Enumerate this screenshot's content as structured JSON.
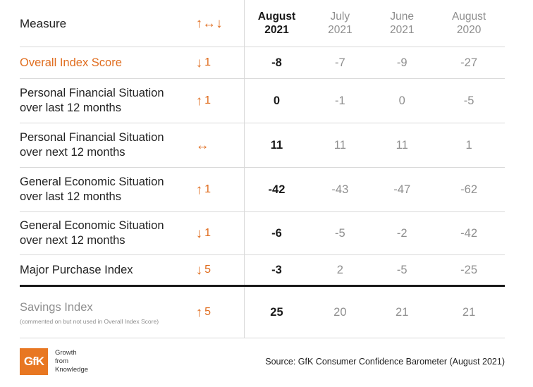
{
  "chart_data": {
    "type": "table",
    "header": {
      "measure": "Measure",
      "change_icon": "up-left-right-down-arrows",
      "columns": [
        {
          "line1": "August",
          "line2": "2021"
        },
        {
          "line1": "July",
          "line2": "2021"
        },
        {
          "line1": "June",
          "line2": "2021"
        },
        {
          "line1": "August",
          "line2": "2020"
        }
      ]
    },
    "rows": [
      {
        "line1": "Overall Index Score",
        "line2": "",
        "direction": "down",
        "change": "1",
        "values": [
          "-8",
          "-7",
          "-9",
          "-27"
        ]
      },
      {
        "line1": "Personal Financial Situation",
        "line2": "over last 12 months",
        "direction": "up",
        "change": "1",
        "values": [
          "0",
          "-1",
          "0",
          "-5"
        ]
      },
      {
        "line1": "Personal Financial Situation",
        "line2": "over next 12 months",
        "direction": "flat",
        "change": "",
        "values": [
          "11",
          "11",
          "11",
          "1"
        ]
      },
      {
        "line1": "General Economic Situation",
        "line2": "over last 12 months",
        "direction": "up",
        "change": "1",
        "values": [
          "-42",
          "-43",
          "-47",
          "-62"
        ]
      },
      {
        "line1": "General Economic Situation",
        "line2": "over next 12 months",
        "direction": "down",
        "change": "1",
        "values": [
          "-6",
          "-5",
          "-2",
          "-42"
        ]
      },
      {
        "line1": "Major Purchase Index",
        "line2": "",
        "direction": "down",
        "change": "5",
        "values": [
          "-3",
          "2",
          "-5",
          "-25"
        ]
      },
      {
        "line1": "Savings Index",
        "line2": "(commented on but not used in Overall Index Score)",
        "direction": "up",
        "change": "5",
        "values": [
          "25",
          "20",
          "21",
          "21"
        ]
      }
    ],
    "colors": {
      "accent": "#e06d1f",
      "muted": "#8f8f8f"
    }
  },
  "footer": {
    "logo_text": "GfK",
    "tagline": [
      "Growth",
      "from",
      "Knowledge"
    ],
    "source": "Source: GfK Consumer Confidence Barometer (August 2021)"
  }
}
